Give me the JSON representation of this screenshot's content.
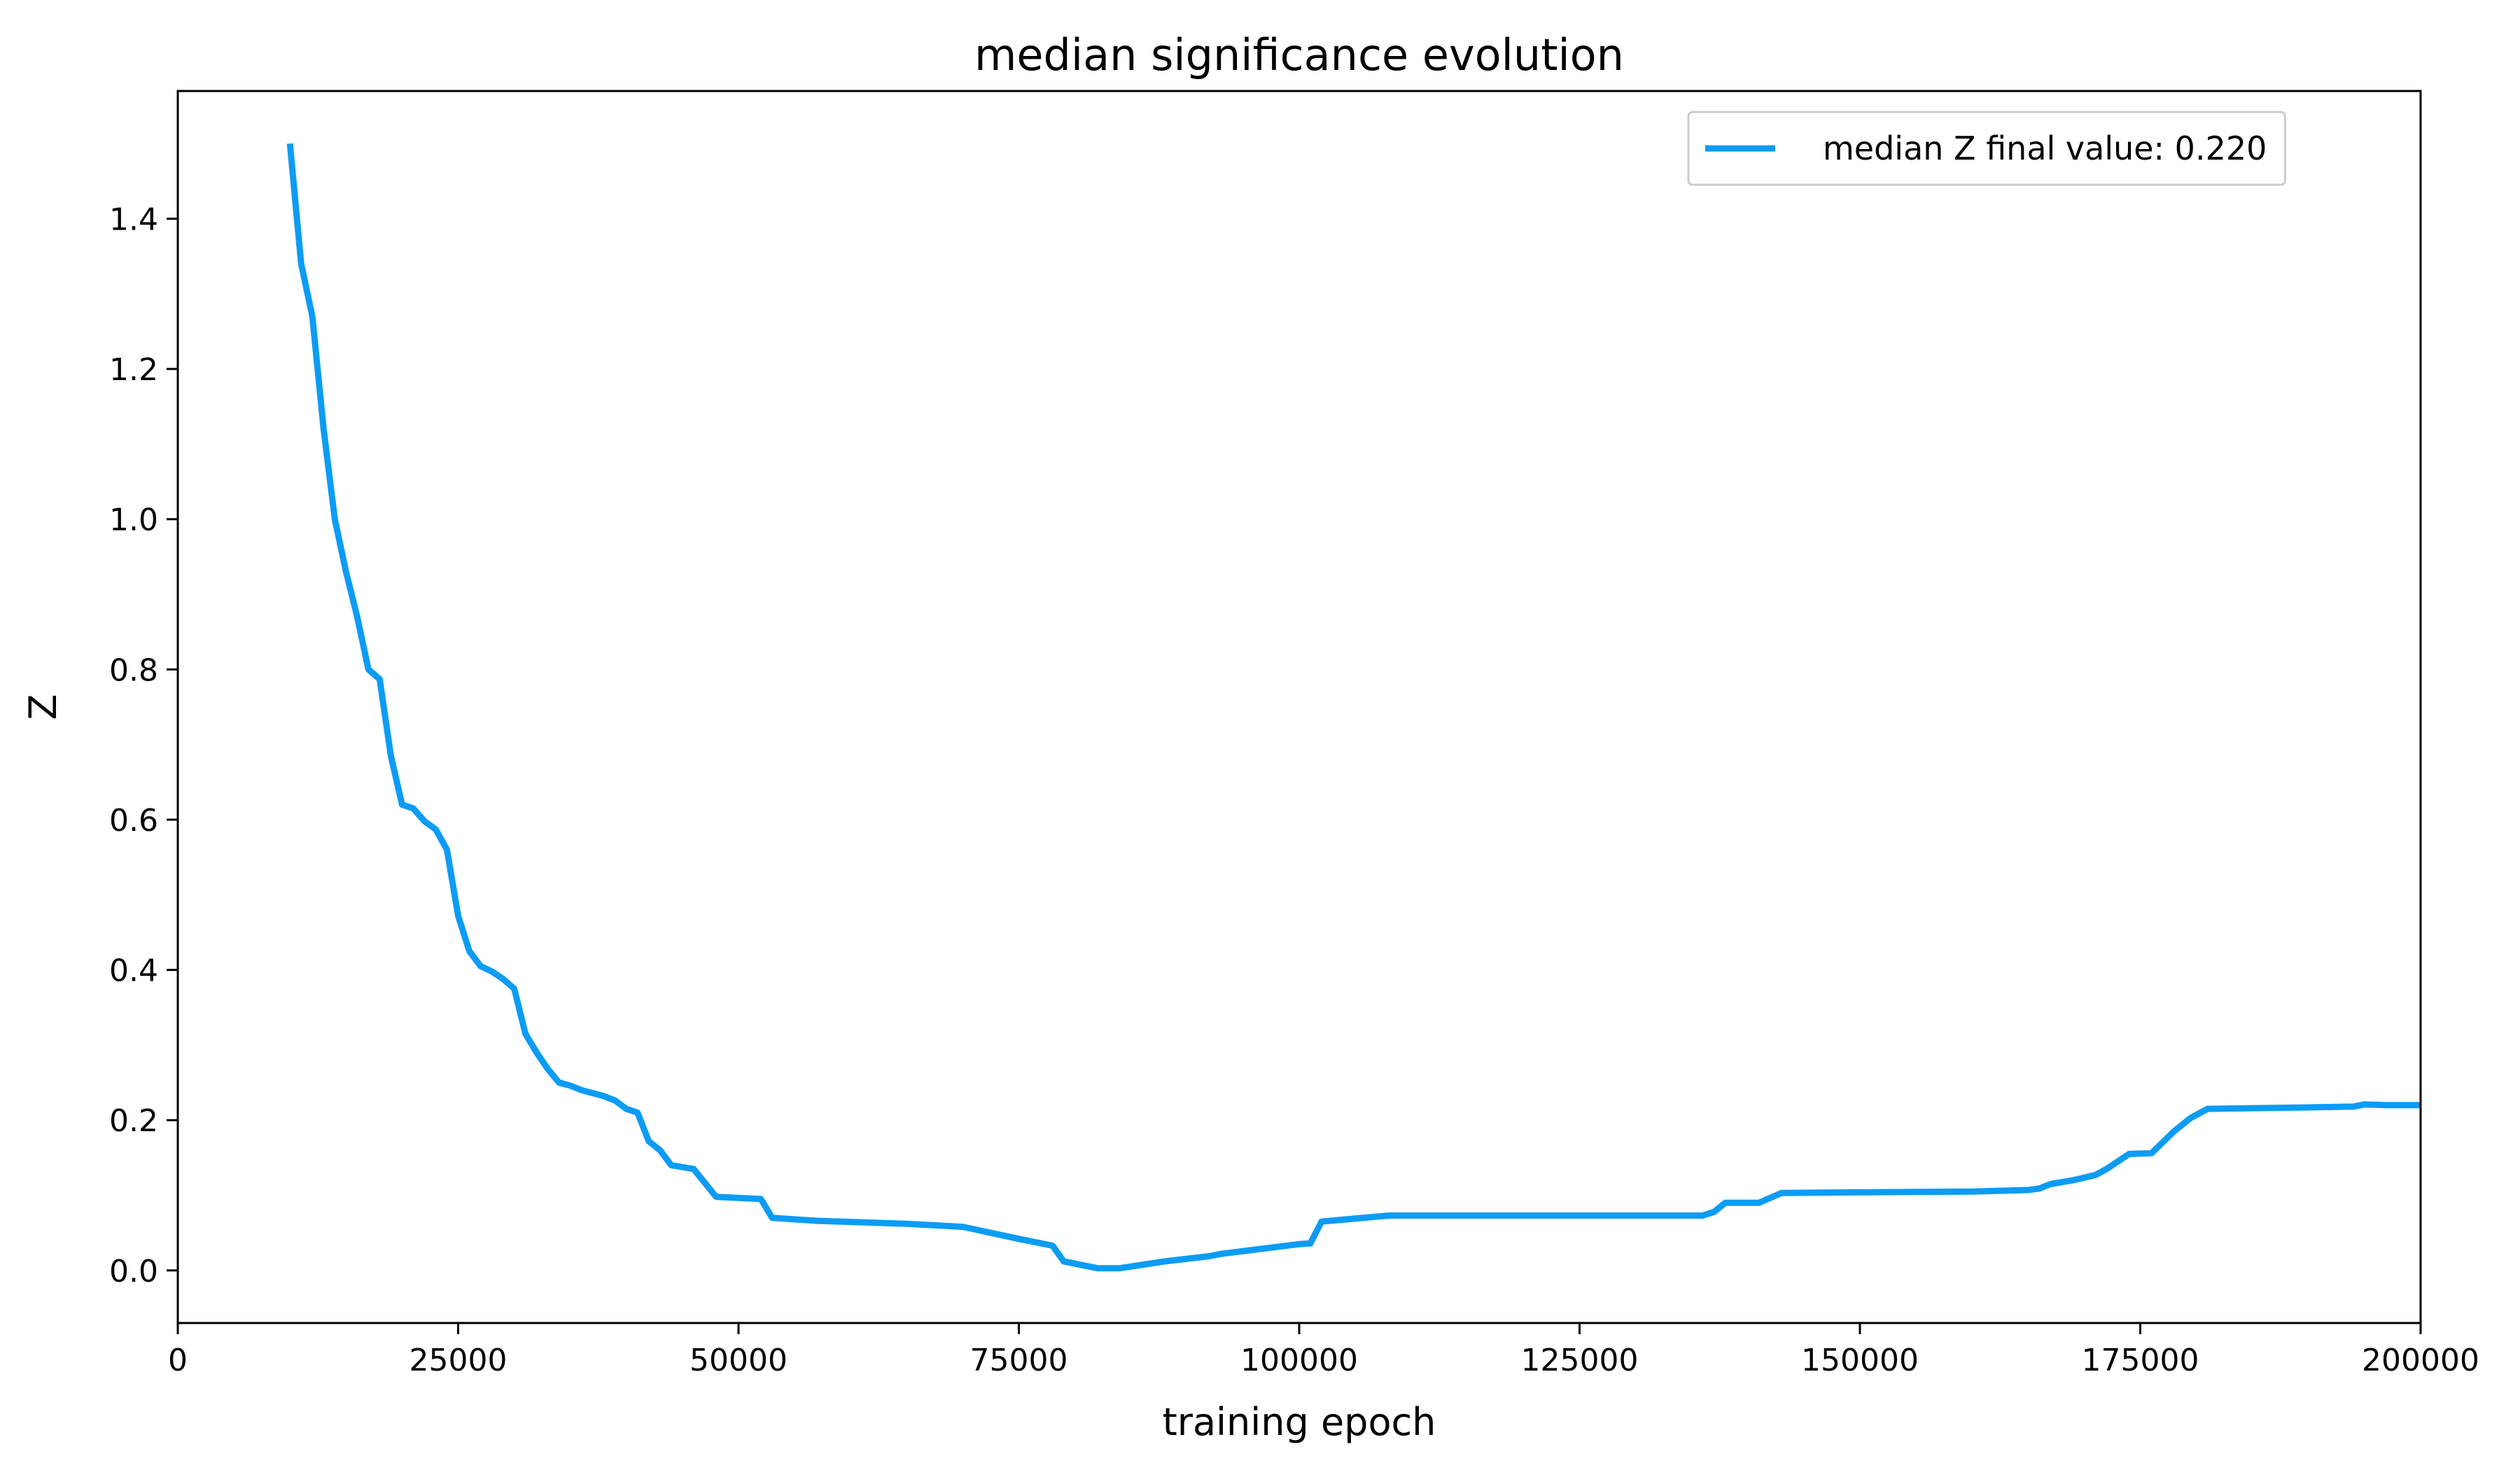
{
  "chart_data": {
    "type": "line",
    "title": "median significance evolution",
    "xlabel": "training epoch",
    "ylabel": "Z",
    "xlim": [
      0,
      200000
    ],
    "ylim": [
      -0.07,
      1.57
    ],
    "xticks": [
      0,
      25000,
      50000,
      75000,
      100000,
      125000,
      150000,
      175000,
      200000
    ],
    "xtick_labels": [
      "0",
      "25000",
      "50000",
      "75000",
      "100000",
      "125000",
      "150000",
      "175000",
      "200000"
    ],
    "yticks": [
      0.0,
      0.2,
      0.4,
      0.6,
      0.8,
      1.0,
      1.2,
      1.4
    ],
    "ytick_labels": [
      "0.0",
      "0.2",
      "0.4",
      "0.6",
      "0.8",
      "1.0",
      "1.2",
      "1.4"
    ],
    "grid": false,
    "legend_position": "top-right",
    "series": [
      {
        "name": "median Z final value: 0.220",
        "color": "#0c9cf4",
        "x": [
          10000,
          11000,
          12000,
          13000,
          14000,
          15000,
          16000,
          17000,
          18000,
          19000,
          20000,
          21000,
          22000,
          23000,
          24000,
          25000,
          26000,
          27000,
          28000,
          29000,
          30000,
          31000,
          32000,
          33000,
          34000,
          35000,
          36000,
          37000,
          38000,
          39000,
          40000,
          41000,
          42000,
          43000,
          44000,
          46000,
          48000,
          52000,
          53000,
          57000,
          65000,
          70000,
          75000,
          78000,
          79000,
          82000,
          84000,
          88000,
          92000,
          93000,
          100000,
          101000,
          102000,
          108000,
          120000,
          130000,
          136000,
          137000,
          138000,
          141000,
          143000,
          150000,
          160000,
          165000,
          166000,
          167000,
          169000,
          171000,
          172000,
          174000,
          176000,
          178000,
          179500,
          181000,
          190000,
          194000,
          195000,
          197000,
          200000
        ],
        "y": [
          1.5,
          1.34,
          1.27,
          1.12,
          1.0,
          0.93,
          0.87,
          0.8,
          0.787,
          0.685,
          0.62,
          0.615,
          0.598,
          0.587,
          0.56,
          0.472,
          0.425,
          0.405,
          0.398,
          0.388,
          0.375,
          0.315,
          0.29,
          0.268,
          0.25,
          0.246,
          0.24,
          0.236,
          0.232,
          0.226,
          0.215,
          0.21,
          0.172,
          0.16,
          0.14,
          0.135,
          0.098,
          0.095,
          0.07,
          0.066,
          0.062,
          0.058,
          0.042,
          0.033,
          0.012,
          0.003,
          0.003,
          0.012,
          0.019,
          0.022,
          0.035,
          0.036,
          0.065,
          0.073,
          0.073,
          0.073,
          0.073,
          0.078,
          0.09,
          0.09,
          0.103,
          0.104,
          0.105,
          0.107,
          0.109,
          0.115,
          0.12,
          0.127,
          0.135,
          0.155,
          0.156,
          0.185,
          0.203,
          0.215,
          0.217,
          0.218,
          0.221,
          0.22,
          0.22
        ]
      }
    ]
  }
}
